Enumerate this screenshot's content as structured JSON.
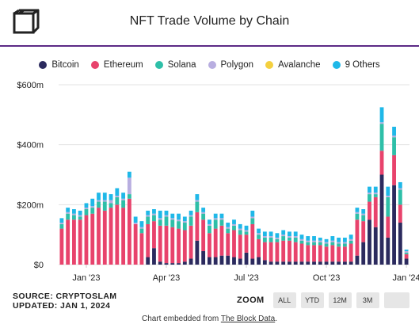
{
  "header": {
    "title": "NFT Trade Volume by Chain"
  },
  "footer": {
    "source": "SOURCE: CRYPTOSLAM",
    "updated": "UPDATED: JAN 1, 2024",
    "embed_prefix": "Chart embedded from ",
    "embed_link": "The Block Data",
    "embed_suffix": "."
  },
  "zoom": {
    "label": "ZOOM",
    "buttons": [
      "ALL",
      "YTD",
      "12M",
      "3M"
    ]
  },
  "chart_data": {
    "type": "bar",
    "stacked": true,
    "title": "NFT Trade Volume by Chain",
    "y_ticks": [
      "$0",
      "$200m",
      "$400m",
      "$600m"
    ],
    "ylim": [
      0,
      600
    ],
    "x_ticks": [
      {
        "label": "Jan '23",
        "index": 4
      },
      {
        "label": "Apr '23",
        "index": 17
      },
      {
        "label": "Jul '23",
        "index": 30
      },
      {
        "label": "Oct '23",
        "index": 43
      },
      {
        "label": "Jan '24",
        "index": 56
      }
    ],
    "grid": true,
    "legend_position": "top",
    "series": [
      {
        "name": "Bitcoin",
        "color": "#2b2a5e",
        "values": [
          0,
          0,
          0,
          0,
          0,
          0,
          0,
          0,
          0,
          0,
          0,
          0,
          0,
          0,
          25,
          55,
          10,
          5,
          5,
          5,
          10,
          20,
          80,
          45,
          25,
          25,
          30,
          30,
          25,
          20,
          40,
          20,
          25,
          15,
          10,
          10,
          10,
          10,
          10,
          10,
          10,
          10,
          10,
          10,
          10,
          10,
          10,
          10,
          30,
          75,
          150,
          125,
          300,
          90,
          265,
          140,
          20
        ]
      },
      {
        "name": "Ethereum",
        "color": "#e8436c",
        "values": [
          120,
          150,
          150,
          150,
          165,
          170,
          190,
          180,
          190,
          200,
          190,
          220,
          135,
          105,
          110,
          90,
          120,
          125,
          120,
          115,
          105,
          110,
          95,
          105,
          80,
          95,
          100,
          75,
          90,
          80,
          60,
          115,
          60,
          60,
          65,
          65,
          70,
          70,
          65,
          60,
          55,
          55,
          55,
          50,
          55,
          50,
          50,
          60,
          120,
          70,
          60,
          100,
          80,
          70,
          100,
          60,
          15
        ]
      },
      {
        "name": "Solana",
        "color": "#2ebfa8",
        "values": [
          15,
          20,
          15,
          10,
          20,
          20,
          20,
          30,
          15,
          25,
          25,
          15,
          0,
          15,
          25,
          20,
          20,
          30,
          25,
          25,
          25,
          30,
          35,
          20,
          25,
          30,
          20,
          15,
          15,
          15,
          10,
          20,
          15,
          15,
          15,
          10,
          15,
          10,
          15,
          10,
          10,
          10,
          10,
          10,
          10,
          10,
          10,
          10,
          20,
          20,
          25,
          10,
          90,
          65,
          60,
          50,
          5
        ]
      },
      {
        "name": "Polygon",
        "color": "#b8aee0",
        "values": [
          5,
          5,
          5,
          5,
          5,
          5,
          5,
          5,
          10,
          5,
          5,
          55,
          5,
          5,
          5,
          5,
          5,
          5,
          5,
          5,
          5,
          5,
          5,
          5,
          5,
          5,
          5,
          5,
          5,
          5,
          5,
          5,
          5,
          5,
          5,
          5,
          5,
          5,
          5,
          5,
          5,
          5,
          5,
          5,
          5,
          5,
          5,
          5,
          5,
          5,
          5,
          5,
          5,
          5,
          5,
          5,
          5
        ]
      },
      {
        "name": "Avalanche",
        "color": "#f4d03f",
        "values": [
          0,
          0,
          0,
          0,
          0,
          0,
          0,
          0,
          0,
          0,
          0,
          0,
          0,
          0,
          0,
          0,
          0,
          0,
          0,
          0,
          0,
          0,
          0,
          0,
          0,
          0,
          0,
          0,
          0,
          0,
          0,
          0,
          0,
          0,
          0,
          0,
          0,
          0,
          0,
          0,
          0,
          0,
          0,
          0,
          0,
          0,
          0,
          0,
          0,
          0,
          0,
          0,
          0,
          0,
          0,
          0,
          0
        ]
      },
      {
        "name": "9 Others",
        "color": "#1fb8e8",
        "values": [
          15,
          15,
          15,
          15,
          15,
          25,
          25,
          25,
          20,
          25,
          20,
          20,
          20,
          20,
          15,
          15,
          25,
          15,
          15,
          20,
          15,
          15,
          20,
          15,
          15,
          15,
          15,
          15,
          15,
          15,
          15,
          20,
          15,
          15,
          15,
          15,
          15,
          15,
          15,
          15,
          15,
          15,
          10,
          10,
          15,
          15,
          15,
          15,
          15,
          15,
          20,
          20,
          50,
          30,
          30,
          20,
          5
        ]
      }
    ]
  }
}
